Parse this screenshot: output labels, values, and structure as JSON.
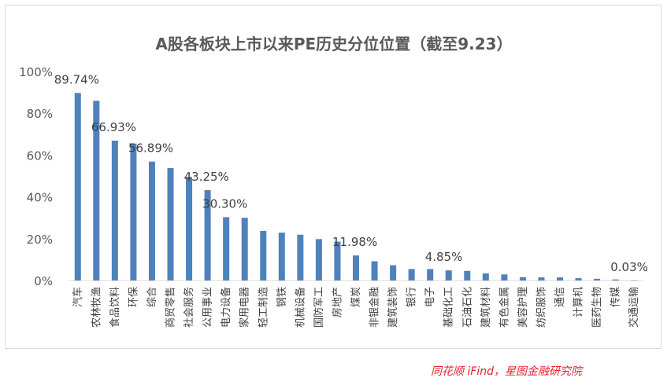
{
  "chart_data": {
    "type": "bar",
    "title": "A股各板块上市以来PE历史分位位置（截至9.23）",
    "xlabel": "",
    "ylabel": "",
    "ylim": [
      0,
      100
    ],
    "y_ticks": [
      "0%",
      "20%",
      "40%",
      "60%",
      "80%",
      "100%"
    ],
    "grid": false,
    "legend": "none",
    "bar_color": "#4f81bd",
    "categories": [
      "汽车",
      "农林牧渔",
      "食品饮料",
      "环保",
      "综合",
      "商贸零售",
      "社会服务",
      "公用事业",
      "电力设备",
      "家用电器",
      "轻工制造",
      "钢铁",
      "机械设备",
      "国防军工",
      "房地产",
      "煤炭",
      "非银金融",
      "建筑装饰",
      "银行",
      "电子",
      "基础化工",
      "石油石化",
      "建筑材料",
      "有色金属",
      "美容护理",
      "纺织服饰",
      "通信",
      "计算机",
      "医药生物",
      "传媒",
      "交通运输"
    ],
    "values": [
      89.74,
      86.0,
      66.93,
      65.5,
      56.89,
      53.8,
      49.5,
      43.25,
      30.3,
      30.0,
      23.7,
      22.9,
      21.9,
      19.8,
      18.6,
      11.98,
      9.2,
      7.3,
      5.5,
      5.5,
      4.85,
      4.6,
      3.4,
      2.9,
      1.6,
      1.5,
      1.5,
      1.1,
      0.8,
      0.5,
      0.03
    ],
    "data_labels": [
      {
        "index": 0,
        "text": "89.74%"
      },
      {
        "index": 2,
        "text": "66.93%"
      },
      {
        "index": 4,
        "text": "56.89%"
      },
      {
        "index": 7,
        "text": "43.25%"
      },
      {
        "index": 8,
        "text": "30.30%"
      },
      {
        "index": 15,
        "text": "11.98%"
      },
      {
        "index": 20,
        "text": "4.85%"
      },
      {
        "index": 30,
        "text": "0.03%"
      }
    ]
  },
  "source": "同花顺 iFind，星图金融研究院"
}
